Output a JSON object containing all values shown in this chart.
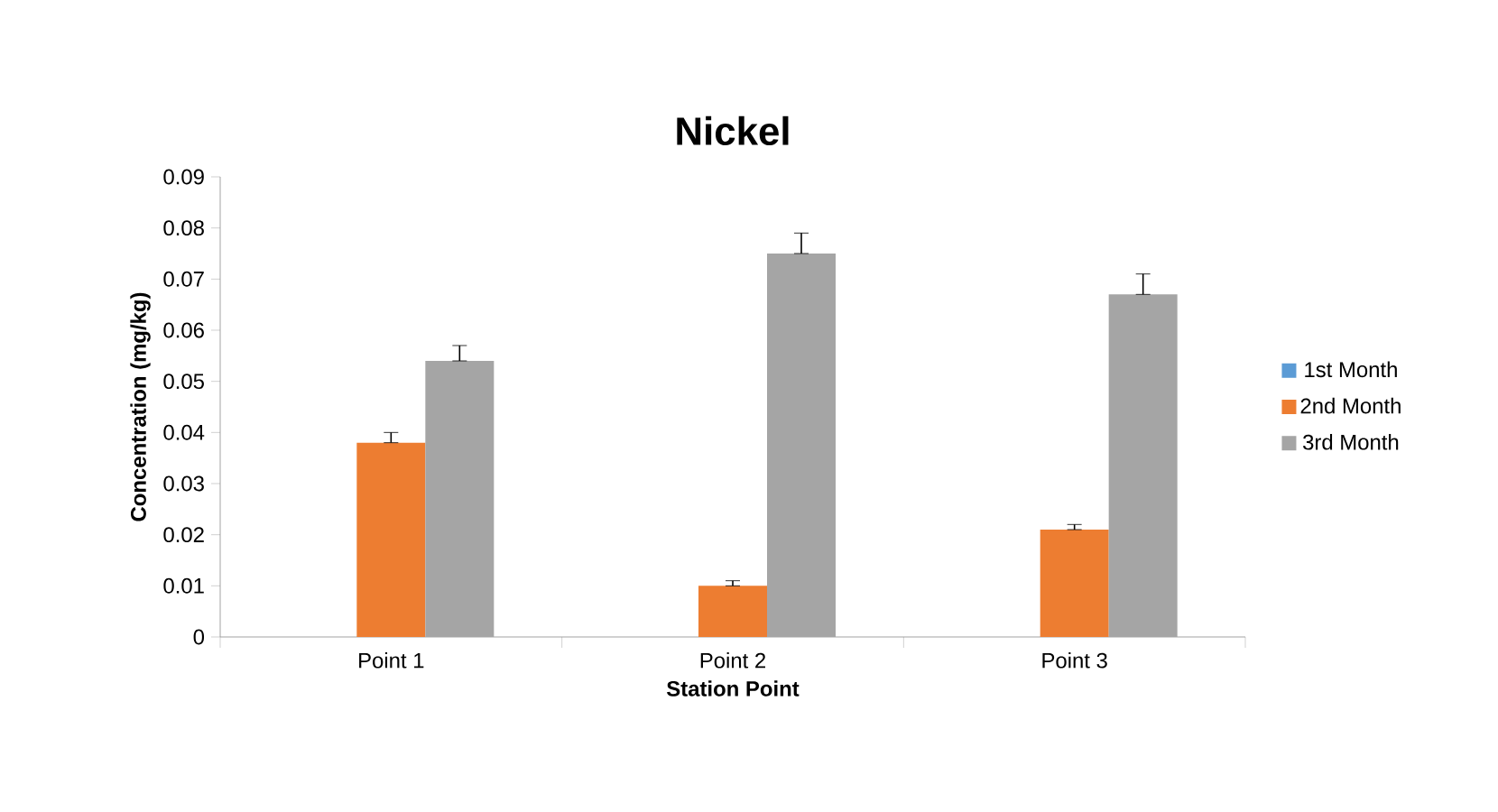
{
  "chart_data": {
    "type": "bar",
    "title": "Nickel",
    "xlabel": "Station Point",
    "ylabel": "Concentration (mg/kg)",
    "categories": [
      "Point 1",
      "Point 2",
      "Point 3"
    ],
    "series": [
      {
        "name": "1st Month",
        "color": "#5b9bd5",
        "values": [
          0,
          0,
          0
        ]
      },
      {
        "name": "2nd Month",
        "color": "#ed7d31",
        "values": [
          0.038,
          0.01,
          0.021
        ],
        "errors": [
          [
            0.038,
            0.04
          ],
          [
            0.01,
            0.011
          ],
          [
            0.021,
            0.022
          ]
        ]
      },
      {
        "name": "3rd Month",
        "color": "#a5a5a5",
        "values": [
          0.054,
          0.075,
          0.067
        ],
        "errors": [
          [
            0.054,
            0.057
          ],
          [
            0.075,
            0.079
          ],
          [
            0.067,
            0.071
          ]
        ]
      }
    ],
    "ylim": [
      0,
      0.09
    ],
    "yticks": [
      0,
      0.01,
      0.02,
      0.03,
      0.04,
      0.05,
      0.06,
      0.07,
      0.08,
      0.09
    ],
    "grid": false,
    "legend": "right"
  }
}
